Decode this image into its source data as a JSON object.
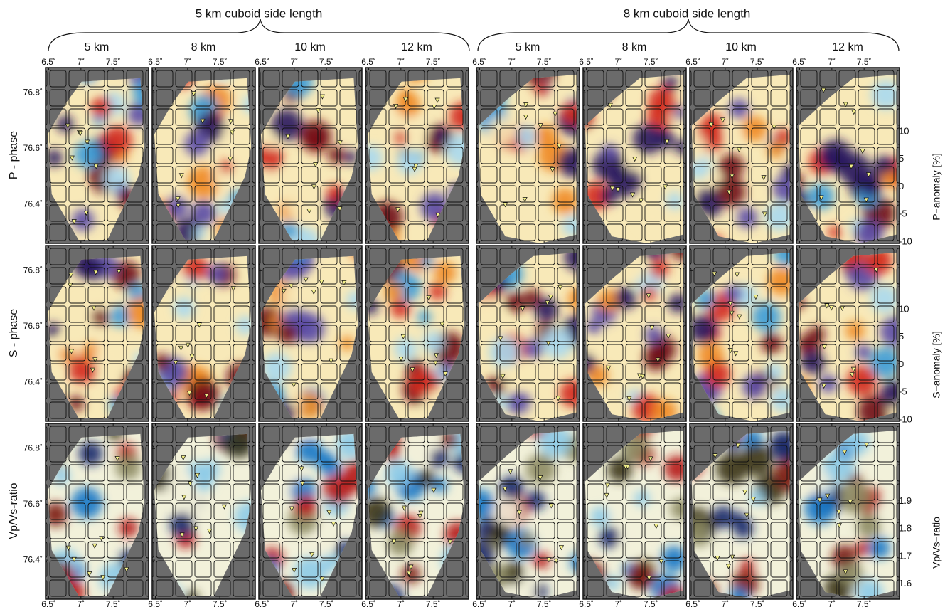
{
  "groups": [
    {
      "title": "5 km cuboid side length",
      "columns": [
        "5 km",
        "8 km",
        "10 km",
        "12 km"
      ]
    },
    {
      "title": "8 km cuboid side length",
      "columns": [
        "5 km",
        "8 km",
        "10 km",
        "12 km"
      ]
    }
  ],
  "rows": [
    {
      "label": "P - phase",
      "colorbar": {
        "label": "P−anomaly [%]",
        "lim": [
          -10,
          10
        ],
        "ticks": [
          -10,
          -5,
          0,
          5,
          10
        ],
        "colors": [
          "#6e0f14",
          "#d32a1c",
          "#f08a24",
          "#f8e9b8",
          "#a9d9ef",
          "#3a9bd8",
          "#5a4ba6",
          "#28175e"
        ]
      }
    },
    {
      "label": "S - phase",
      "colorbar": {
        "label": "S−anomaly [%]",
        "lim": [
          -10,
          10
        ],
        "ticks": [
          -10,
          -5,
          0,
          5,
          10
        ],
        "colors": [
          "#6e0f14",
          "#d32a1c",
          "#f08a24",
          "#f8e9b8",
          "#a9d9ef",
          "#3a9bd8",
          "#5a4ba6",
          "#28175e"
        ]
      }
    },
    {
      "label": "Vp/Vs-ratio",
      "colorbar": {
        "label": "Vp/Vs−ratio",
        "lim": [
          1.55,
          1.95
        ],
        "ticks": [
          1.6,
          1.7,
          1.8,
          1.9
        ],
        "colors": [
          "#1b2a6b",
          "#1a78c6",
          "#8dcbe8",
          "#f2f1da",
          "#8c8a62",
          "#3b3519",
          "#7a1a12",
          "#b5141a"
        ]
      }
    }
  ],
  "lon": {
    "lim": [
      6.45,
      8.05
    ],
    "ticks": [
      {
        "value": 6.5,
        "label": "6.5˚"
      },
      {
        "value": 7,
        "label": "7˚"
      },
      {
        "value": 7.5,
        "label": "7.5˚"
      }
    ]
  },
  "lat": {
    "lim": [
      76.26,
      76.89
    ],
    "ticks": [
      {
        "value": 76.8,
        "label": "76.8˚"
      },
      {
        "value": 76.6,
        "label": "76.6˚"
      },
      {
        "value": 76.4,
        "label": "76.4˚"
      }
    ]
  }
}
